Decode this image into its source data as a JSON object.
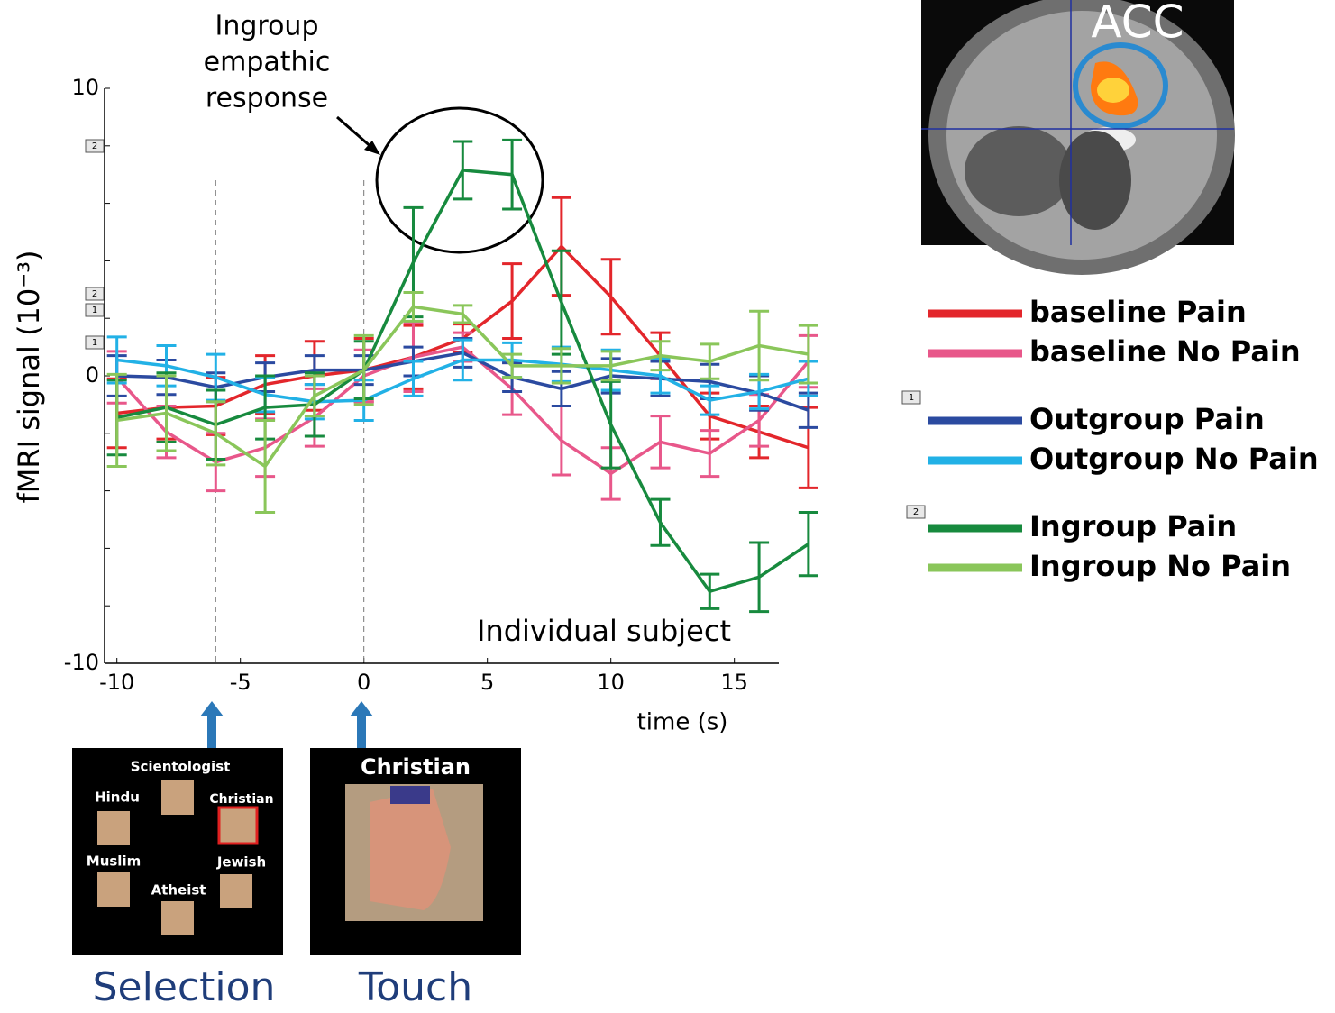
{
  "chart_data": {
    "type": "line",
    "ylabel": "fMRI signal (10⁻³)",
    "xlabel": "time (s)",
    "annotation": [
      "Ingroup",
      "empathic",
      "response"
    ],
    "subtitle": "Individual subject",
    "brain_label": "ACC",
    "x": [
      -10,
      -8,
      -6,
      -4,
      -2,
      0,
      2,
      4,
      6,
      8,
      10,
      12,
      14,
      16,
      18
    ],
    "xlim": [
      -10.5,
      16.8
    ],
    "ylim": [
      -10,
      10
    ],
    "xticks": [
      -10,
      -5,
      0,
      5,
      10,
      15
    ],
    "yticks": [
      -10,
      0,
      10
    ],
    "yminor": [
      -8,
      -6,
      -4,
      -2,
      2,
      4,
      6,
      8
    ],
    "vlines": [
      -6,
      0
    ],
    "axis_markers": [
      "2",
      "2",
      "1",
      "1"
    ],
    "series": [
      {
        "name": "baseline Pain",
        "color": "#e3262b",
        "values": [
          -1.3,
          -1.1,
          -1.05,
          -0.3,
          0,
          0.2,
          0.65,
          1.3,
          2.6,
          4.5,
          2.75,
          0.7,
          -1.4,
          -1.95,
          -2.5
        ],
        "errors": [
          1.2,
          1.1,
          1.0,
          1.0,
          1.2,
          1.1,
          1.1,
          0.5,
          1.3,
          1.7,
          1.3,
          0.8,
          0.8,
          0.9,
          1.4
        ]
      },
      {
        "name": "baseline No Pain",
        "color": "#e8578a",
        "values": [
          -0.05,
          -1.95,
          -3.0,
          -2.5,
          -1.45,
          0,
          0.65,
          1.0,
          -0.45,
          -2.25,
          -3.4,
          -2.3,
          -2.7,
          -1.55,
          0.5
        ],
        "errors": [
          0.9,
          0.9,
          1.0,
          1.0,
          1.0,
          0.9,
          1.2,
          0.5,
          0.9,
          1.2,
          0.9,
          0.9,
          0.8,
          0.9,
          0.9
        ]
      },
      {
        "name": "Outgroup Pain",
        "color": "#2b4aa0",
        "values": [
          0,
          -0.05,
          -0.4,
          -0.05,
          0.2,
          0.2,
          0.5,
          0.8,
          -0.05,
          -0.45,
          0,
          -0.1,
          -0.2,
          -0.6,
          -1.2
        ],
        "errors": [
          0.7,
          0.6,
          0.5,
          0.5,
          0.5,
          0.5,
          0.5,
          0.5,
          0.5,
          0.6,
          0.6,
          0.6,
          0.6,
          0.6,
          0.6
        ]
      },
      {
        "name": "Outgroup No Pain",
        "color": "#22b1e6",
        "values": [
          0.55,
          0.35,
          -0.05,
          -0.65,
          -0.9,
          -0.85,
          -0.1,
          0.55,
          0.55,
          0.4,
          0.2,
          0,
          -0.85,
          -0.55,
          -0.1
        ],
        "errors": [
          0.8,
          0.7,
          0.8,
          0.6,
          0.6,
          0.7,
          0.6,
          0.7,
          0.6,
          0.6,
          0.7,
          0.6,
          0.5,
          0.6,
          0.6
        ]
      },
      {
        "name": "Ingroup Pain",
        "color": "#178a3e",
        "values": [
          -1.45,
          -1.1,
          -1.7,
          -1.1,
          -1.0,
          0.2,
          3.95,
          7.15,
          7.0,
          2.55,
          -1.7,
          -5.1,
          -7.5,
          -7.0,
          -5.85
        ],
        "errors": [
          1.3,
          1.2,
          1.2,
          1.1,
          1.1,
          1.0,
          1.9,
          1.0,
          1.2,
          1.8,
          1.5,
          0.8,
          0.6,
          1.2,
          1.1
        ]
      },
      {
        "name": "Ingroup No Pain",
        "color": "#8ac65a",
        "values": [
          -1.55,
          -1.3,
          -2.0,
          -3.15,
          -0.7,
          0.2,
          2.4,
          2.15,
          0.35,
          0.35,
          0.35,
          0.7,
          0.5,
          1.05,
          0.75
        ],
        "errors": [
          1.6,
          1.3,
          1.1,
          1.6,
          0.7,
          1.2,
          0.5,
          0.3,
          0.4,
          0.6,
          0.5,
          0.5,
          0.6,
          1.2,
          1.0
        ]
      }
    ],
    "legend_markers": [
      "1",
      "2"
    ],
    "panels": {
      "selection_title": "Selection",
      "touch_title": "Touch",
      "selection_items": [
        "Scientologist",
        "Hindu",
        "Christian",
        "Muslim",
        "Jewish",
        "Atheist"
      ],
      "touch_item": "Christian"
    }
  }
}
